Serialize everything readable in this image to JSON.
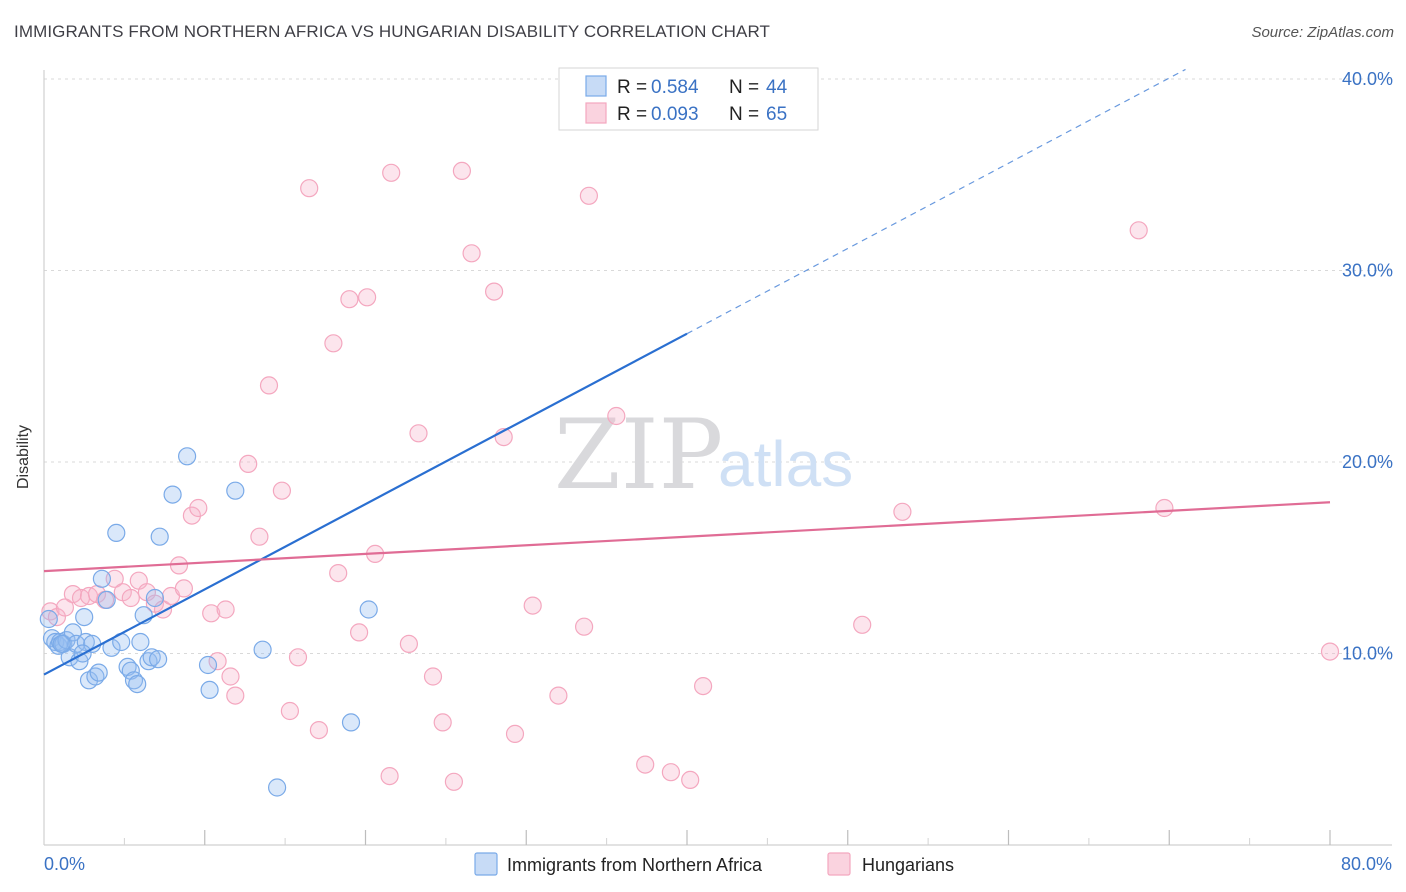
{
  "header": {
    "title": "IMMIGRANTS FROM NORTHERN AFRICA VS HUNGARIAN DISABILITY CORRELATION CHART",
    "source": "Source: ZipAtlas.com"
  },
  "watermark": {
    "zip": "ZIP",
    "atlas": "atlas"
  },
  "chart_data": {
    "type": "scatter",
    "title": "IMMIGRANTS FROM NORTHERN AFRICA VS HUNGARIAN DISABILITY CORRELATION CHART",
    "xlabel": "",
    "ylabel": "Disability",
    "xlim": [
      0,
      80
    ],
    "ylim": [
      0,
      40
    ],
    "x_tick_labels": [
      {
        "value": 0,
        "label": "0.0%"
      },
      {
        "value": 80,
        "label": "80.0%"
      }
    ],
    "y_ticks": [
      {
        "value": 10,
        "label": "10.0%"
      },
      {
        "value": 20,
        "label": "20.0%"
      },
      {
        "value": 30,
        "label": "30.0%"
      },
      {
        "value": 40,
        "label": "40.0%"
      }
    ],
    "legend": {
      "r_label": "R =",
      "n_label": "N =",
      "entries": [
        {
          "series": "Immigrants from Northern Africa",
          "r": "0.584",
          "n": "44"
        },
        {
          "series": "Hungarians",
          "r": "0.093",
          "n": "65"
        }
      ]
    },
    "series": [
      {
        "name": "Immigrants from Northern Africa",
        "color": "#7aaae8",
        "line_color": "#2a6fd1",
        "trend": {
          "x0": 0,
          "y0": 8.9,
          "x1": 40,
          "y1": 26.7,
          "dash_x1": 80,
          "dash_y1": 44.5
        },
        "points": [
          [
            0.3,
            11.8
          ],
          [
            0.5,
            10.8
          ],
          [
            0.7,
            10.6
          ],
          [
            0.9,
            10.4
          ],
          [
            1.0,
            10.6
          ],
          [
            1.2,
            10.5
          ],
          [
            1.4,
            10.7
          ],
          [
            1.6,
            9.8
          ],
          [
            1.8,
            11.1
          ],
          [
            2.0,
            10.5
          ],
          [
            2.2,
            9.6
          ],
          [
            2.5,
            11.9
          ],
          [
            2.6,
            10.6
          ],
          [
            2.8,
            8.6
          ],
          [
            3.0,
            10.5
          ],
          [
            3.2,
            8.8
          ],
          [
            3.4,
            9.0
          ],
          [
            3.6,
            13.9
          ],
          [
            3.9,
            12.8
          ],
          [
            4.2,
            10.3
          ],
          [
            4.5,
            16.3
          ],
          [
            4.8,
            10.6
          ],
          [
            5.2,
            9.3
          ],
          [
            5.4,
            9.1
          ],
          [
            5.6,
            8.6
          ],
          [
            5.8,
            8.4
          ],
          [
            6.0,
            10.6
          ],
          [
            6.2,
            12.0
          ],
          [
            6.5,
            9.6
          ],
          [
            6.7,
            9.8
          ],
          [
            6.9,
            12.9
          ],
          [
            7.1,
            9.7
          ],
          [
            7.2,
            16.1
          ],
          [
            8.0,
            18.3
          ],
          [
            8.9,
            20.3
          ],
          [
            10.2,
            9.4
          ],
          [
            10.3,
            8.1
          ],
          [
            11.9,
            18.5
          ],
          [
            13.6,
            10.2
          ],
          [
            14.5,
            3.0
          ],
          [
            19.1,
            6.4
          ],
          [
            20.2,
            12.3
          ],
          [
            1.1,
            10.5
          ],
          [
            2.4,
            10.0
          ]
        ]
      },
      {
        "name": "Hungarians",
        "color": "#f4a7bf",
        "line_color": "#e06c95",
        "trend": {
          "x0": 0,
          "y0": 14.3,
          "x1": 80,
          "y1": 17.9
        },
        "points": [
          [
            0.4,
            12.2
          ],
          [
            0.8,
            11.9
          ],
          [
            1.3,
            12.4
          ],
          [
            1.8,
            13.1
          ],
          [
            2.3,
            12.9
          ],
          [
            2.8,
            13.0
          ],
          [
            3.3,
            13.1
          ],
          [
            3.8,
            12.8
          ],
          [
            4.4,
            13.9
          ],
          [
            4.9,
            13.2
          ],
          [
            5.4,
            12.9
          ],
          [
            5.9,
            13.8
          ],
          [
            6.4,
            13.2
          ],
          [
            6.9,
            12.6
          ],
          [
            7.4,
            12.3
          ],
          [
            7.9,
            13.0
          ],
          [
            8.4,
            14.6
          ],
          [
            8.7,
            13.4
          ],
          [
            9.2,
            17.2
          ],
          [
            9.6,
            17.6
          ],
          [
            10.4,
            12.1
          ],
          [
            10.8,
            9.6
          ],
          [
            11.3,
            12.3
          ],
          [
            11.6,
            8.8
          ],
          [
            11.9,
            7.8
          ],
          [
            12.7,
            19.9
          ],
          [
            13.4,
            16.1
          ],
          [
            14.0,
            24.0
          ],
          [
            14.8,
            18.5
          ],
          [
            15.3,
            7.0
          ],
          [
            15.8,
            9.8
          ],
          [
            16.5,
            34.3
          ],
          [
            17.1,
            6.0
          ],
          [
            18.0,
            26.2
          ],
          [
            18.3,
            14.2
          ],
          [
            19.0,
            28.5
          ],
          [
            19.6,
            11.1
          ],
          [
            20.1,
            28.6
          ],
          [
            20.6,
            15.2
          ],
          [
            21.5,
            3.6
          ],
          [
            21.6,
            35.1
          ],
          [
            22.7,
            10.5
          ],
          [
            23.3,
            21.5
          ],
          [
            24.2,
            8.8
          ],
          [
            24.8,
            6.4
          ],
          [
            25.5,
            3.3
          ],
          [
            26.0,
            35.2
          ],
          [
            26.6,
            30.9
          ],
          [
            28.0,
            28.9
          ],
          [
            28.6,
            21.3
          ],
          [
            29.3,
            5.8
          ],
          [
            30.4,
            12.5
          ],
          [
            32.0,
            7.8
          ],
          [
            33.6,
            11.4
          ],
          [
            33.9,
            33.9
          ],
          [
            35.6,
            22.4
          ],
          [
            37.4,
            4.2
          ],
          [
            39.0,
            3.8
          ],
          [
            40.2,
            3.4
          ],
          [
            41.0,
            8.3
          ],
          [
            50.9,
            11.5
          ],
          [
            53.4,
            17.4
          ],
          [
            68.1,
            32.1
          ],
          [
            69.7,
            17.6
          ],
          [
            80.0,
            10.1
          ]
        ]
      }
    ]
  }
}
